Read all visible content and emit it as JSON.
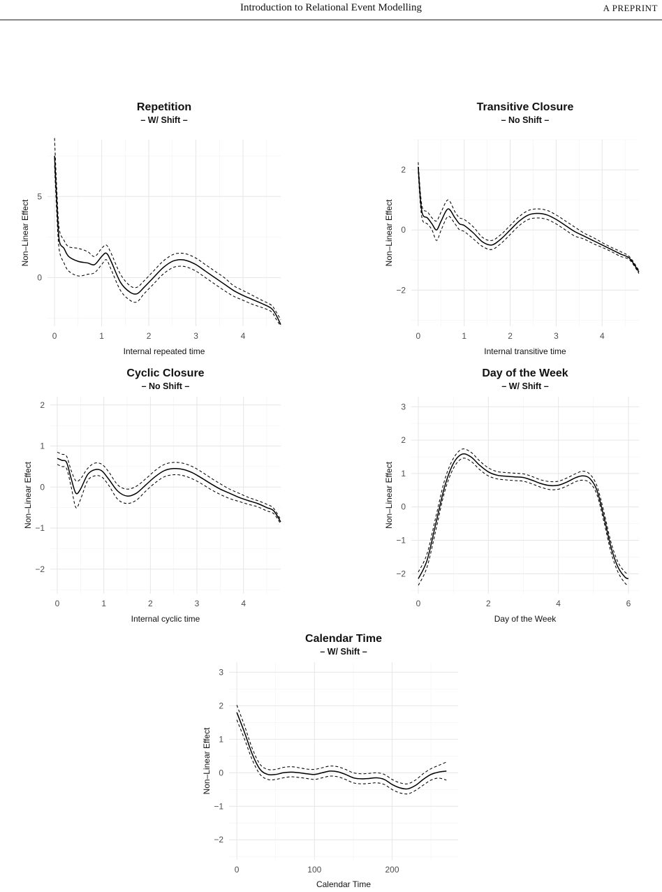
{
  "page_header": {
    "title": "Introduction to Relational Event Modelling",
    "tag": "A PREPRINT"
  },
  "colors": {
    "line": "#000000",
    "grid_major": "#e6e6e6",
    "grid_minor": "#f2f2f2",
    "text": "#111111",
    "tick": "#4d4d4d"
  },
  "chart_data": [
    {
      "type": "line",
      "title": "Repetition",
      "subtitle": "– W/ Shift –",
      "xlabel": "Internal repeated time",
      "ylabel": "Non–Linear Effect",
      "xlim": [
        -0.15,
        4.8
      ],
      "ylim": [
        -3.0,
        8.5
      ],
      "xticks": [
        0,
        1,
        2,
        3,
        4
      ],
      "yticks": [
        0,
        5
      ],
      "series": [
        {
          "style": "solid",
          "x": [
            0.0,
            0.05,
            0.1,
            0.2,
            0.3,
            0.5,
            0.7,
            0.85,
            1.0,
            1.1,
            1.2,
            1.4,
            1.6,
            1.75,
            1.9,
            2.1,
            2.3,
            2.5,
            2.65,
            2.8,
            3.0,
            3.2,
            3.4,
            3.6,
            3.8,
            4.0,
            4.2,
            4.4,
            4.6,
            4.7,
            4.8
          ],
          "y": [
            7.5,
            4.5,
            2.3,
            1.8,
            1.3,
            1.0,
            0.9,
            0.8,
            1.3,
            1.5,
            1.0,
            -0.3,
            -0.9,
            -1.0,
            -0.6,
            0.0,
            0.6,
            1.0,
            1.1,
            1.05,
            0.8,
            0.4,
            0.0,
            -0.4,
            -0.8,
            -1.1,
            -1.35,
            -1.6,
            -1.9,
            -2.3,
            -2.9
          ]
        },
        {
          "style": "dashed",
          "x": [
            0.0,
            0.05,
            0.1,
            0.2,
            0.3,
            0.5,
            0.7,
            0.85,
            1.0,
            1.1,
            1.2,
            1.4,
            1.6,
            1.75,
            1.9,
            2.1,
            2.3,
            2.5,
            2.65,
            2.8,
            3.0,
            3.2,
            3.4,
            3.6,
            3.8,
            4.0,
            4.2,
            4.4,
            4.6,
            4.7,
            4.8
          ],
          "y": [
            8.6,
            5.3,
            3.0,
            2.3,
            1.9,
            1.8,
            1.6,
            1.3,
            1.8,
            2.0,
            1.5,
            0.2,
            -0.5,
            -0.6,
            -0.2,
            0.4,
            1.0,
            1.4,
            1.5,
            1.45,
            1.2,
            0.8,
            0.4,
            0.0,
            -0.5,
            -0.8,
            -1.1,
            -1.4,
            -1.7,
            -2.1,
            -2.6
          ]
        },
        {
          "style": "dashed",
          "x": [
            0.0,
            0.05,
            0.1,
            0.2,
            0.3,
            0.5,
            0.7,
            0.85,
            1.0,
            1.1,
            1.2,
            1.4,
            1.6,
            1.75,
            1.9,
            2.1,
            2.3,
            2.5,
            2.65,
            2.8,
            3.0,
            3.2,
            3.4,
            3.6,
            3.8,
            4.0,
            4.2,
            4.4,
            4.6,
            4.7,
            4.8
          ],
          "y": [
            6.9,
            3.8,
            1.7,
            0.9,
            0.4,
            0.1,
            0.2,
            0.3,
            0.8,
            1.1,
            0.5,
            -0.8,
            -1.4,
            -1.5,
            -1.0,
            -0.4,
            0.2,
            0.6,
            0.7,
            0.65,
            0.4,
            0.0,
            -0.4,
            -0.8,
            -1.15,
            -1.4,
            -1.65,
            -1.85,
            -2.1,
            -2.55,
            -3.0
          ]
        }
      ]
    },
    {
      "type": "line",
      "title": "Transitive Closure",
      "subtitle": "– No Shift –",
      "xlabel": "Internal transitive time",
      "ylabel": "Non–Linear Effect",
      "xlim": [
        -0.15,
        4.8
      ],
      "ylim": [
        -3.2,
        3.0
      ],
      "xticks": [
        0,
        1,
        2,
        3,
        4
      ],
      "yticks": [
        -2,
        0,
        2
      ],
      "series": [
        {
          "style": "solid",
          "x": [
            0.0,
            0.05,
            0.1,
            0.2,
            0.3,
            0.4,
            0.5,
            0.65,
            0.8,
            0.9,
            1.0,
            1.2,
            1.4,
            1.6,
            1.8,
            2.0,
            2.2,
            2.4,
            2.6,
            2.8,
            3.0,
            3.2,
            3.4,
            3.6,
            3.8,
            4.0,
            4.2,
            4.4,
            4.6,
            4.8
          ],
          "y": [
            2.1,
            1.0,
            0.5,
            0.4,
            0.2,
            0.0,
            0.3,
            0.7,
            0.4,
            0.2,
            0.15,
            -0.1,
            -0.4,
            -0.5,
            -0.3,
            0.0,
            0.3,
            0.5,
            0.55,
            0.5,
            0.35,
            0.15,
            -0.05,
            -0.2,
            -0.35,
            -0.5,
            -0.65,
            -0.8,
            -0.95,
            -1.4
          ]
        },
        {
          "style": "dashed",
          "x": [
            0.0,
            0.05,
            0.1,
            0.2,
            0.3,
            0.4,
            0.5,
            0.65,
            0.8,
            0.9,
            1.0,
            1.2,
            1.4,
            1.6,
            1.8,
            2.0,
            2.2,
            2.4,
            2.6,
            2.8,
            3.0,
            3.2,
            3.4,
            3.6,
            3.8,
            4.0,
            4.2,
            4.4,
            4.6,
            4.8
          ],
          "y": [
            2.25,
            1.2,
            0.7,
            0.6,
            0.4,
            0.3,
            0.6,
            1.0,
            0.6,
            0.4,
            0.35,
            0.1,
            -0.25,
            -0.35,
            -0.15,
            0.15,
            0.45,
            0.65,
            0.7,
            0.65,
            0.5,
            0.3,
            0.1,
            -0.1,
            -0.25,
            -0.42,
            -0.58,
            -0.72,
            -0.9,
            -1.35
          ]
        },
        {
          "style": "dashed",
          "x": [
            0.0,
            0.05,
            0.1,
            0.2,
            0.3,
            0.4,
            0.5,
            0.65,
            0.8,
            0.9,
            1.0,
            1.2,
            1.4,
            1.6,
            1.8,
            2.0,
            2.2,
            2.4,
            2.6,
            2.8,
            3.0,
            3.2,
            3.4,
            3.6,
            3.8,
            4.0,
            4.2,
            4.4,
            4.6,
            4.8
          ],
          "y": [
            1.95,
            0.8,
            0.3,
            0.2,
            0.0,
            -0.35,
            0.0,
            0.45,
            0.2,
            0.0,
            -0.05,
            -0.3,
            -0.55,
            -0.65,
            -0.45,
            -0.15,
            0.15,
            0.35,
            0.4,
            0.35,
            0.2,
            0.0,
            -0.2,
            -0.3,
            -0.45,
            -0.58,
            -0.72,
            -0.88,
            -1.0,
            -1.45
          ]
        }
      ]
    },
    {
      "type": "line",
      "title": "Cyclic Closure",
      "subtitle": "– No Shift –",
      "xlabel": "Internal cyclic time",
      "ylabel": "Non–Linear Effect",
      "xlim": [
        -0.15,
        4.8
      ],
      "ylim": [
        -2.6,
        2.2
      ],
      "xticks": [
        0,
        1,
        2,
        3,
        4
      ],
      "yticks": [
        -2,
        -1,
        0,
        1,
        2
      ],
      "series": [
        {
          "style": "solid",
          "x": [
            0.0,
            0.1,
            0.2,
            0.3,
            0.4,
            0.5,
            0.65,
            0.8,
            0.95,
            1.1,
            1.3,
            1.5,
            1.7,
            1.9,
            2.1,
            2.3,
            2.5,
            2.7,
            2.9,
            3.1,
            3.3,
            3.5,
            3.7,
            3.9,
            4.1,
            4.3,
            4.5,
            4.65,
            4.8
          ],
          "y": [
            0.7,
            0.65,
            0.6,
            0.2,
            -0.15,
            -0.05,
            0.3,
            0.42,
            0.4,
            0.2,
            -0.1,
            -0.22,
            -0.15,
            0.05,
            0.25,
            0.4,
            0.45,
            0.43,
            0.35,
            0.22,
            0.08,
            -0.05,
            -0.15,
            -0.25,
            -0.33,
            -0.4,
            -0.5,
            -0.58,
            -0.85
          ]
        },
        {
          "style": "dashed",
          "x": [
            0.0,
            0.1,
            0.2,
            0.3,
            0.4,
            0.5,
            0.65,
            0.8,
            0.95,
            1.1,
            1.3,
            1.5,
            1.7,
            1.9,
            2.1,
            2.3,
            2.5,
            2.7,
            2.9,
            3.1,
            3.3,
            3.5,
            3.7,
            3.9,
            4.1,
            4.3,
            4.5,
            4.65,
            4.8
          ],
          "y": [
            0.85,
            0.8,
            0.75,
            0.4,
            0.15,
            0.2,
            0.45,
            0.58,
            0.56,
            0.38,
            0.05,
            -0.05,
            0.02,
            0.2,
            0.4,
            0.55,
            0.6,
            0.58,
            0.5,
            0.37,
            0.22,
            0.08,
            -0.05,
            -0.15,
            -0.25,
            -0.33,
            -0.42,
            -0.52,
            -0.8
          ]
        },
        {
          "style": "dashed",
          "x": [
            0.0,
            0.1,
            0.2,
            0.3,
            0.4,
            0.5,
            0.65,
            0.8,
            0.95,
            1.1,
            1.3,
            1.5,
            1.7,
            1.9,
            2.1,
            2.3,
            2.5,
            2.7,
            2.9,
            3.1,
            3.3,
            3.5,
            3.7,
            3.9,
            4.1,
            4.3,
            4.5,
            4.65,
            4.8
          ],
          "y": [
            0.55,
            0.5,
            0.45,
            0.0,
            -0.5,
            -0.3,
            0.15,
            0.27,
            0.25,
            0.05,
            -0.3,
            -0.4,
            -0.32,
            -0.1,
            0.1,
            0.25,
            0.3,
            0.28,
            0.2,
            0.08,
            -0.06,
            -0.18,
            -0.28,
            -0.35,
            -0.42,
            -0.48,
            -0.58,
            -0.65,
            -0.9
          ]
        }
      ]
    },
    {
      "type": "line",
      "title": "Day of the Week",
      "subtitle": "– W/ Shift –",
      "xlabel": "Day of the Week",
      "ylabel": "Non–Linear Effect",
      "xlim": [
        -0.2,
        6.3
      ],
      "ylim": [
        -2.6,
        3.3
      ],
      "xticks": [
        0,
        2,
        4,
        6
      ],
      "yticks": [
        -2,
        -1,
        0,
        1,
        2,
        3
      ],
      "series": [
        {
          "style": "solid",
          "x": [
            0.0,
            0.25,
            0.5,
            0.75,
            1.0,
            1.25,
            1.5,
            1.75,
            2.0,
            2.25,
            2.5,
            2.75,
            3.0,
            3.25,
            3.5,
            3.75,
            4.0,
            4.25,
            4.5,
            4.7,
            4.9,
            5.1,
            5.3,
            5.5,
            5.7,
            5.9,
            6.0
          ],
          "y": [
            -2.15,
            -1.6,
            -0.5,
            0.6,
            1.3,
            1.58,
            1.5,
            1.25,
            1.05,
            0.95,
            0.92,
            0.9,
            0.88,
            0.8,
            0.7,
            0.64,
            0.65,
            0.75,
            0.88,
            0.93,
            0.85,
            0.5,
            -0.3,
            -1.2,
            -1.8,
            -2.1,
            -2.15
          ]
        },
        {
          "style": "dashed",
          "x": [
            0.0,
            0.25,
            0.5,
            0.75,
            1.0,
            1.25,
            1.5,
            1.75,
            2.0,
            2.25,
            2.5,
            2.75,
            3.0,
            3.25,
            3.5,
            3.75,
            4.0,
            4.25,
            4.5,
            4.7,
            4.9,
            5.1,
            5.3,
            5.5,
            5.7,
            5.9,
            6.0
          ],
          "y": [
            -1.95,
            -1.4,
            -0.3,
            0.8,
            1.45,
            1.73,
            1.64,
            1.38,
            1.17,
            1.06,
            1.03,
            1.01,
            0.99,
            0.91,
            0.81,
            0.76,
            0.77,
            0.87,
            1.0,
            1.07,
            0.98,
            0.63,
            -0.15,
            -1.05,
            -1.65,
            -1.95,
            -2.0
          ]
        },
        {
          "style": "dashed",
          "x": [
            0.0,
            0.25,
            0.5,
            0.75,
            1.0,
            1.25,
            1.5,
            1.75,
            2.0,
            2.25,
            2.5,
            2.75,
            3.0,
            3.25,
            3.5,
            3.75,
            4.0,
            4.25,
            4.5,
            4.7,
            4.9,
            5.1,
            5.3,
            5.5,
            5.7,
            5.9,
            6.0
          ],
          "y": [
            -2.35,
            -1.8,
            -0.7,
            0.45,
            1.15,
            1.45,
            1.37,
            1.12,
            0.93,
            0.84,
            0.81,
            0.79,
            0.77,
            0.69,
            0.59,
            0.52,
            0.53,
            0.63,
            0.76,
            0.8,
            0.72,
            0.37,
            -0.45,
            -1.35,
            -1.95,
            -2.28,
            -2.35
          ]
        }
      ]
    },
    {
      "type": "line",
      "title": "Calendar Time",
      "subtitle": "– W/ Shift –",
      "xlabel": "Calendar Time",
      "ylabel": "Non–Linear Effect",
      "xlim": [
        -10,
        285
      ],
      "ylim": [
        -2.6,
        3.3
      ],
      "xticks": [
        0,
        100,
        200
      ],
      "yticks": [
        -2,
        -1,
        0,
        1,
        2,
        3
      ],
      "series": [
        {
          "style": "solid",
          "x": [
            0,
            10,
            20,
            30,
            40,
            50,
            60,
            70,
            80,
            90,
            100,
            110,
            120,
            130,
            140,
            150,
            160,
            170,
            180,
            190,
            200,
            210,
            220,
            230,
            240,
            250,
            260,
            270
          ],
          "y": [
            1.8,
            1.2,
            0.55,
            0.1,
            -0.05,
            -0.05,
            0.0,
            0.02,
            0.0,
            -0.03,
            -0.05,
            0.0,
            0.05,
            0.03,
            -0.05,
            -0.15,
            -0.18,
            -0.17,
            -0.15,
            -0.2,
            -0.35,
            -0.45,
            -0.48,
            -0.38,
            -0.2,
            -0.05,
            0.02,
            0.05
          ]
        },
        {
          "style": "dashed",
          "x": [
            0,
            10,
            20,
            30,
            40,
            50,
            60,
            70,
            80,
            90,
            100,
            110,
            120,
            130,
            140,
            150,
            160,
            170,
            180,
            190,
            200,
            210,
            220,
            230,
            240,
            250,
            260,
            270
          ],
          "y": [
            2.02,
            1.4,
            0.72,
            0.25,
            0.1,
            0.1,
            0.16,
            0.18,
            0.15,
            0.11,
            0.1,
            0.15,
            0.2,
            0.18,
            0.1,
            0.0,
            -0.03,
            -0.02,
            0.0,
            -0.05,
            -0.2,
            -0.3,
            -0.33,
            -0.22,
            -0.03,
            0.12,
            0.22,
            0.32
          ]
        },
        {
          "style": "dashed",
          "x": [
            0,
            10,
            20,
            30,
            40,
            50,
            60,
            70,
            80,
            90,
            100,
            110,
            120,
            130,
            140,
            150,
            160,
            170,
            180,
            190,
            200,
            210,
            220,
            230,
            240,
            250,
            260,
            270
          ],
          "y": [
            1.58,
            1.0,
            0.38,
            -0.05,
            -0.2,
            -0.2,
            -0.15,
            -0.12,
            -0.14,
            -0.17,
            -0.2,
            -0.15,
            -0.1,
            -0.12,
            -0.2,
            -0.3,
            -0.33,
            -0.32,
            -0.3,
            -0.35,
            -0.5,
            -0.6,
            -0.63,
            -0.53,
            -0.37,
            -0.22,
            -0.16,
            -0.22
          ]
        }
      ]
    }
  ]
}
